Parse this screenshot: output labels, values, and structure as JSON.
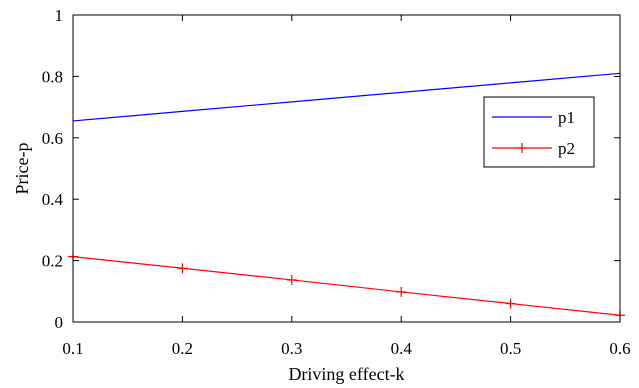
{
  "chart_data": {
    "type": "line",
    "title": "",
    "xlabel": "Driving effect-k",
    "ylabel": "Price-p",
    "xlim": [
      0.1,
      0.6
    ],
    "ylim": [
      0,
      1
    ],
    "xticks": [
      0.1,
      0.2,
      0.3,
      0.4,
      0.5,
      0.6
    ],
    "xtick_labels": [
      "0.1",
      "0.2",
      "0.3",
      "0.4",
      "0.5",
      "0.6"
    ],
    "yticks": [
      0,
      0.2,
      0.4,
      0.6,
      0.8,
      1
    ],
    "ytick_labels": [
      "0",
      "0.2",
      "0.4",
      "0.6",
      "0.8",
      "1"
    ],
    "grid": false,
    "legend_position": "right",
    "series": [
      {
        "name": "p1",
        "color": "#0000ff",
        "marker": "none",
        "x": [
          0.1,
          0.2,
          0.3,
          0.4,
          0.5,
          0.6
        ],
        "y": [
          0.655,
          0.686,
          0.717,
          0.748,
          0.779,
          0.81
        ]
      },
      {
        "name": "p2",
        "color": "#ff0000",
        "marker": "plus",
        "x": [
          0.1,
          0.2,
          0.3,
          0.4,
          0.5,
          0.6
        ],
        "y": [
          0.213,
          0.175,
          0.137,
          0.098,
          0.06,
          0.022
        ]
      }
    ]
  }
}
